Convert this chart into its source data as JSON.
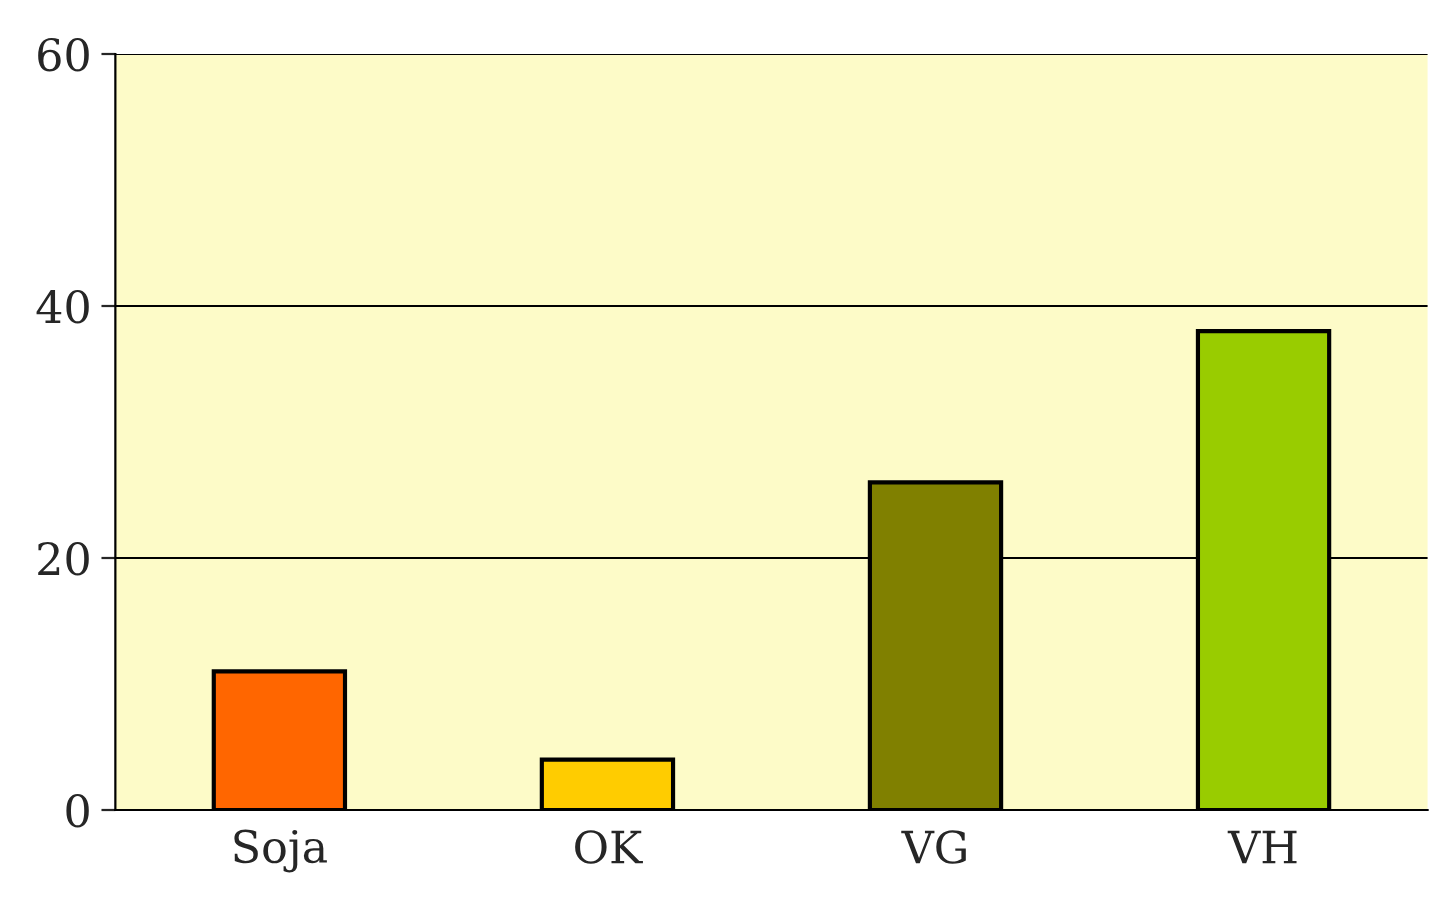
{
  "chart_data": {
    "type": "bar",
    "categories": [
      "Soja",
      "OK",
      "VG",
      "VH"
    ],
    "values": [
      11,
      4,
      26,
      38
    ],
    "colors": [
      "#ff6600",
      "#ffcc00",
      "#808000",
      "#99cc00"
    ],
    "ylim": [
      0,
      60
    ],
    "yticks": [
      0,
      20,
      40,
      60
    ],
    "grid": "y"
  }
}
